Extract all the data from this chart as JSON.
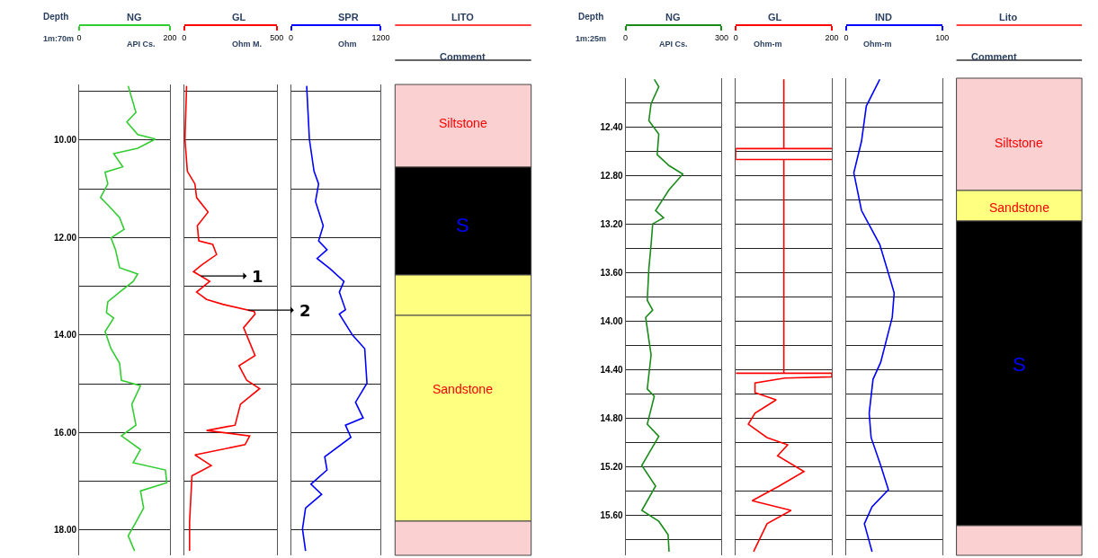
{
  "chart_data": [
    {
      "type": "line",
      "title": "NG",
      "xlabel": "API Cs.",
      "ylabel": "Depth",
      "annotations": [
        "1m:70m"
      ],
      "xlim": [
        0,
        200
      ],
      "xticks": [
        0,
        200
      ],
      "ylim": [
        18.52,
        8.86
      ],
      "yticks": [
        {
          "value": 9,
          "label": null
        },
        {
          "value": 10,
          "label": "10.00"
        },
        {
          "value": 11,
          "label": null
        },
        {
          "value": 12,
          "label": "12.00"
        },
        {
          "value": 13,
          "label": null
        },
        {
          "value": 14,
          "label": "14.00"
        },
        {
          "value": 15,
          "label": null
        },
        {
          "value": 16,
          "label": "16.00"
        },
        {
          "value": 17,
          "label": null
        },
        {
          "value": 18,
          "label": "18.00"
        }
      ],
      "grid": "y",
      "series": [
        {
          "color": "#33cc33",
          "x": [
            108,
            125,
            105,
            129,
            168,
            129,
            76,
            96,
            57,
            63,
            47,
            63,
            89,
            99,
            70,
            80,
            89,
            129,
            119,
            89,
            63,
            60,
            76,
            57,
            70,
            89,
            93,
            135,
            116,
            125,
            93,
            135,
            119,
            190,
            193,
            135,
            142,
            125,
            108,
            122
          ],
          "values": [
            8.89,
            9.43,
            9.63,
            9.89,
            9.98,
            10.17,
            10.28,
            10.55,
            10.66,
            10.9,
            11.18,
            11.33,
            11.59,
            11.83,
            12.01,
            12.25,
            12.62,
            12.75,
            12.9,
            13.12,
            13.32,
            13.54,
            13.65,
            13.93,
            14.28,
            14.58,
            14.93,
            15.04,
            15.42,
            15.85,
            16.07,
            16.35,
            16.62,
            16.77,
            17.03,
            17.2,
            17.55,
            17.84,
            18.12,
            18.43
          ]
        }
      ]
    },
    {
      "type": "line",
      "title": "GL",
      "xlabel": "Ohm M.",
      "xlim": [
        0,
        500
      ],
      "xticks": [
        0,
        500
      ],
      "ylim": [
        18.52,
        8.86
      ],
      "yticks": [
        {
          "value": 9,
          "label": null
        },
        {
          "value": 10,
          "label": null
        },
        {
          "value": 11,
          "label": null
        },
        {
          "value": 12,
          "label": null
        },
        {
          "value": 13,
          "label": null
        },
        {
          "value": 14,
          "label": null
        },
        {
          "value": 15,
          "label": null
        },
        {
          "value": 16,
          "label": null
        },
        {
          "value": 17,
          "label": null
        },
        {
          "value": 18,
          "label": null
        }
      ],
      "grid": "y",
      "tick_labels": "x",
      "annotations": [
        {
          "text": "1",
          "x": 90,
          "y": 12.79
        },
        {
          "text": "2",
          "x": 345,
          "y": 13.49
        }
      ],
      "series": [
        {
          "color": "#ff0000",
          "x": [
            13,
            4,
            17,
            58,
            67,
            129,
            71,
            79,
            154,
            175,
            96,
            50,
            138,
            67,
            121,
            208,
            379,
            383,
            321,
            383,
            296,
            338,
            408,
            304,
            275,
            121,
            354,
            329,
            58,
            146,
            42,
            29,
            29
          ],
          "values": [
            8.89,
            9.98,
            10.64,
            10.9,
            11.18,
            11.48,
            11.76,
            12.07,
            12.14,
            12.35,
            12.56,
            12.7,
            12.9,
            13.12,
            13.27,
            13.37,
            13.52,
            13.57,
            13.85,
            14.42,
            14.63,
            14.93,
            15.1,
            15.42,
            15.85,
            15.96,
            16.07,
            16.25,
            16.46,
            16.68,
            16.89,
            17.84,
            18.43
          ]
        }
      ]
    },
    {
      "type": "line",
      "title": "SPR",
      "xlabel": "Ohm",
      "xlim": [
        0,
        1200
      ],
      "xticks": [
        0,
        1200
      ],
      "ylim": [
        18.52,
        8.86
      ],
      "yticks": [
        {
          "value": 9,
          "label": null
        },
        {
          "value": 10,
          "label": null
        },
        {
          "value": 11,
          "label": null
        },
        {
          "value": 12,
          "label": null
        },
        {
          "value": 13,
          "label": null
        },
        {
          "value": 14,
          "label": null
        },
        {
          "value": 15,
          "label": null
        },
        {
          "value": 16,
          "label": null
        },
        {
          "value": 17,
          "label": null
        },
        {
          "value": 18,
          "label": null
        }
      ],
      "grid": "y",
      "tick_labels": "x",
      "series": [
        {
          "color": "#0000ff",
          "x": [
            210,
            246,
            308,
            369,
            328,
            431,
            369,
            482,
            349,
            523,
            708,
            646,
            728,
            646,
            821,
            985,
            1015,
            862,
            964,
            728,
            800,
            451,
            482,
            267,
            410,
            195,
            154,
            195
          ],
          "values": [
            8.89,
            9.98,
            10.64,
            10.9,
            11.26,
            11.76,
            12.07,
            12.25,
            12.43,
            12.64,
            12.9,
            13.12,
            13.48,
            13.57,
            14.0,
            14.28,
            14.99,
            15.38,
            15.7,
            15.85,
            16.1,
            16.5,
            16.77,
            17.06,
            17.27,
            17.55,
            17.98,
            18.43
          ]
        }
      ]
    },
    {
      "type": "other",
      "title": "LITO",
      "xlabel": "Comment",
      "annotations": [
        "Siltstone",
        "S",
        "Sandstone"
      ]
    },
    {
      "type": "line",
      "title": "NG",
      "xlabel": "API Cs.",
      "ylabel": "Depth",
      "annotations": [
        "1m:25m"
      ],
      "xlim": [
        0,
        300
      ],
      "xticks": [
        0,
        300
      ],
      "ylim": [
        15.93,
        12.0
      ],
      "yticks": [
        {
          "value": 12.2,
          "label": null
        },
        {
          "value": 12.4,
          "label": "12.40"
        },
        {
          "value": 12.6,
          "label": null
        },
        {
          "value": 12.8,
          "label": "12.80"
        },
        {
          "value": 13.0,
          "label": null
        },
        {
          "value": 13.2,
          "label": "13.20"
        },
        {
          "value": 13.4,
          "label": null
        },
        {
          "value": 13.6,
          "label": "13.60"
        },
        {
          "value": 13.8,
          "label": null
        },
        {
          "value": 14.0,
          "label": "14.00"
        },
        {
          "value": 14.2,
          "label": null
        },
        {
          "value": 14.4,
          "label": "14.40"
        },
        {
          "value": 14.6,
          "label": null
        },
        {
          "value": 14.8,
          "label": "14.80"
        },
        {
          "value": 15.0,
          "label": null
        },
        {
          "value": 15.2,
          "label": "15.20"
        },
        {
          "value": 15.4,
          "label": null
        },
        {
          "value": 15.6,
          "label": "15.60"
        },
        {
          "value": 15.8,
          "label": null
        }
      ],
      "grid": "y",
      "series": [
        {
          "color": "#1a8c1a",
          "x": [
            90,
            104,
            80,
            73,
            104,
            99,
            136,
            179,
            136,
            94,
            119,
            85,
            80,
            73,
            68,
            85,
            63,
            80,
            68,
            90,
            68,
            104,
            51,
            94,
            51,
            104,
            133,
            136
          ],
          "values": [
            12.01,
            12.07,
            12.21,
            12.35,
            12.46,
            12.63,
            12.72,
            12.79,
            12.92,
            13.09,
            13.15,
            13.2,
            13.37,
            13.57,
            13.83,
            13.91,
            13.97,
            14.28,
            14.56,
            14.62,
            14.85,
            14.95,
            15.19,
            15.36,
            15.56,
            15.65,
            15.76,
            15.9
          ]
        }
      ]
    },
    {
      "type": "line",
      "title": "GL",
      "xlabel": "Ohm-m",
      "xlim": [
        0,
        200
      ],
      "xticks": [
        0,
        200
      ],
      "ylim": [
        15.93,
        12.0
      ],
      "yticks": [
        {
          "value": 12.2,
          "label": null
        },
        {
          "value": 12.4,
          "label": null
        },
        {
          "value": 12.6,
          "label": null
        },
        {
          "value": 12.8,
          "label": null
        },
        {
          "value": 13.0,
          "label": null
        },
        {
          "value": 13.2,
          "label": null
        },
        {
          "value": 13.4,
          "label": null
        },
        {
          "value": 13.6,
          "label": null
        },
        {
          "value": 13.8,
          "label": null
        },
        {
          "value": 14.0,
          "label": null
        },
        {
          "value": 14.2,
          "label": null
        },
        {
          "value": 14.4,
          "label": null
        },
        {
          "value": 14.6,
          "label": null
        },
        {
          "value": 14.8,
          "label": null
        },
        {
          "value": 15.0,
          "label": null
        },
        {
          "value": 15.2,
          "label": null
        },
        {
          "value": 15.4,
          "label": null
        },
        {
          "value": 15.6,
          "label": null
        },
        {
          "value": 15.8,
          "label": null
        }
      ],
      "grid": "y",
      "tick_labels": "x",
      "series": [
        {
          "color": "#ff0000",
          "x": [
            100,
            100,
            200,
            0,
            0,
            200,
            100,
            100,
            0,
            200,
            200,
            102,
            40,
            40,
            84,
            40,
            26,
            65,
            108,
            87,
            142,
            90,
            34,
            115,
            65,
            37
          ],
          "values": [
            12.01,
            12.58,
            12.58,
            12.58,
            12.67,
            12.67,
            12.67,
            14.43,
            14.43,
            14.43,
            14.46,
            14.47,
            14.51,
            14.59,
            14.65,
            14.76,
            14.85,
            14.96,
            15.02,
            15.11,
            15.24,
            15.36,
            15.48,
            15.56,
            15.67,
            15.9
          ]
        }
      ]
    },
    {
      "type": "line",
      "title": "IND",
      "xlabel": "Ohm-m",
      "xlim": [
        0,
        100
      ],
      "xticks": [
        0,
        100
      ],
      "ylim": [
        15.93,
        12.0
      ],
      "yticks": [
        {
          "value": 12.2,
          "label": null
        },
        {
          "value": 12.4,
          "label": null
        },
        {
          "value": 12.6,
          "label": null
        },
        {
          "value": 12.8,
          "label": null
        },
        {
          "value": 13.0,
          "label": null
        },
        {
          "value": 13.2,
          "label": null
        },
        {
          "value": 13.4,
          "label": null
        },
        {
          "value": 13.6,
          "label": null
        },
        {
          "value": 13.8,
          "label": null
        },
        {
          "value": 14.0,
          "label": null
        },
        {
          "value": 14.2,
          "label": null
        },
        {
          "value": 14.4,
          "label": null
        },
        {
          "value": 14.6,
          "label": null
        },
        {
          "value": 14.8,
          "label": null
        },
        {
          "value": 15.0,
          "label": null
        },
        {
          "value": 15.2,
          "label": null
        },
        {
          "value": 15.4,
          "label": null
        },
        {
          "value": 15.6,
          "label": null
        },
        {
          "value": 15.8,
          "label": null
        }
      ],
      "grid": "y",
      "tick_labels": "x",
      "series": [
        {
          "color": "#0000ff",
          "x": [
            35,
            21,
            16,
            8,
            16,
            35,
            46,
            50,
            48,
            36,
            28,
            24,
            26,
            36,
            44,
            27,
            19,
            27
          ],
          "values": [
            12.01,
            12.23,
            12.52,
            12.78,
            13.09,
            13.37,
            13.66,
            13.77,
            13.97,
            14.34,
            14.48,
            14.76,
            14.96,
            15.19,
            15.39,
            15.53,
            15.67,
            15.9
          ]
        }
      ]
    },
    {
      "type": "other",
      "title": "Lito",
      "xlabel": "Comment",
      "annotations": [
        "Siltstone",
        "Sandstone",
        "S"
      ]
    }
  ]
}
